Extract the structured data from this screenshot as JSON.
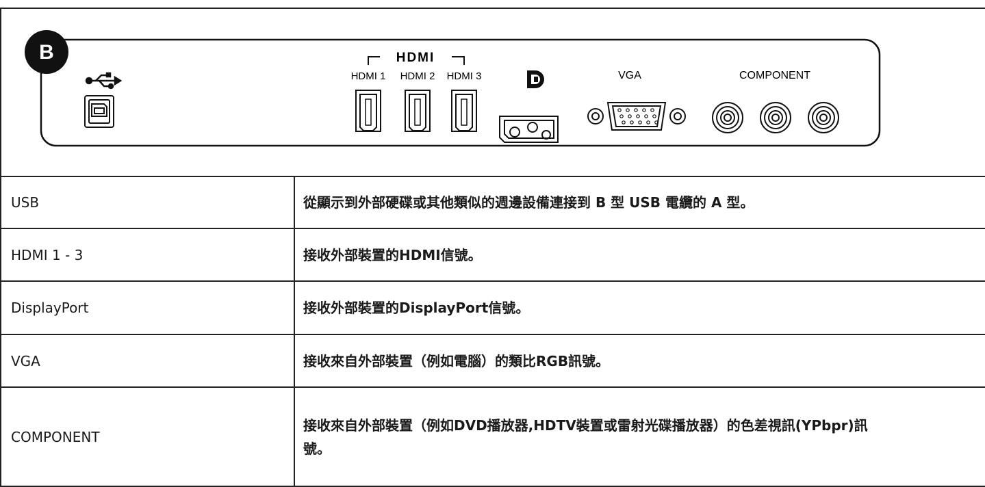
{
  "diagram": {
    "badge": "B",
    "hdmi_logo": "HDMI",
    "hdmi_ports": [
      "HDMI 1",
      "HDMI 2",
      "HDMI 3"
    ],
    "vga": "VGA",
    "component": "COMPONENT"
  },
  "table": {
    "rows": [
      [
        "USB",
        "從顯示到外部硬碟或其他類似的週邊設備連接到 B 型 USB 電纜的 A 型。"
      ],
      [
        "HDMI 1 - 3",
        "接收外部裝置的HDMI信號。"
      ],
      [
        "DisplayPort",
        "接收外部裝置的DisplayPort信號。"
      ],
      [
        "VGA",
        "接收來自外部裝置（例如電腦）的類比RGB訊號。"
      ],
      [
        "COMPONENT",
        "接收來自外部裝置（例如DVD播放器,HDTV裝置或雷射光碟播放器）的色差視訊(YPbpr)訊號。"
      ]
    ]
  }
}
